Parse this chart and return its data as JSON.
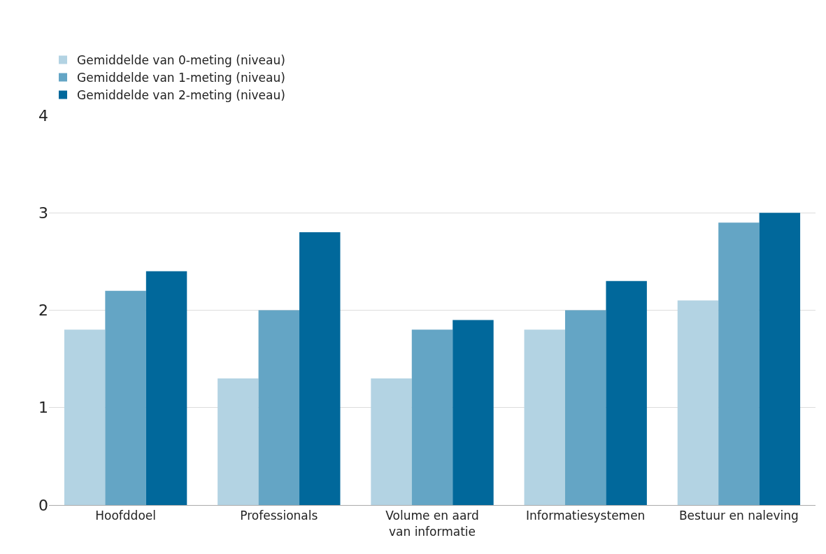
{
  "chart_data": {
    "type": "bar",
    "categories": [
      "Hoofddoel",
      "Professionals",
      "Volume en aard\nvan informatie",
      "Informatiesystemen",
      "Bestuur en naleving"
    ],
    "series": [
      {
        "name": "Gemiddelde van 0-meting (niveau)",
        "color": "#b3d3e3",
        "values": [
          1.8,
          1.3,
          1.3,
          1.8,
          2.1
        ]
      },
      {
        "name": "Gemiddelde van 1-meting (niveau)",
        "color": "#64a5c5",
        "values": [
          2.2,
          2.0,
          1.8,
          2.0,
          2.9
        ]
      },
      {
        "name": "Gemiddelde van 2-meting (niveau)",
        "color": "#01689b",
        "values": [
          2.4,
          2.8,
          1.9,
          2.3,
          3.0
        ]
      }
    ],
    "ylim": [
      0,
      4
    ],
    "yticks": [
      0,
      1,
      2,
      3,
      4
    ],
    "grid": "y",
    "legend": "top left"
  }
}
